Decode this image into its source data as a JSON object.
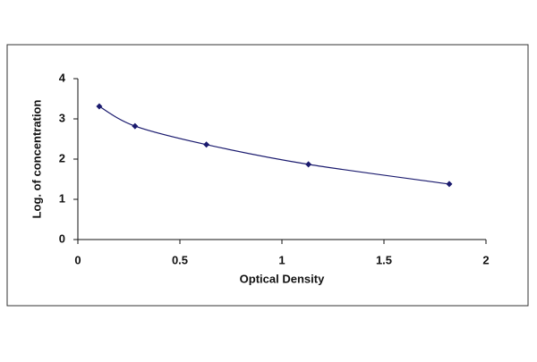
{
  "chart_data": {
    "type": "scatter",
    "xlabel": "Optical Density",
    "ylabel": "Log. of concentration",
    "x": [
      0.105,
      0.28,
      0.63,
      1.13,
      1.82
    ],
    "values": [
      3.31,
      2.82,
      2.36,
      1.87,
      1.38
    ],
    "color": "#1a1a6e",
    "fit_line": true,
    "xlim": [
      0,
      2
    ],
    "xticks": [
      0,
      0.5,
      1,
      1.5,
      2
    ],
    "ylim": [
      0,
      4
    ],
    "yticks": [
      0,
      1,
      2,
      3,
      4
    ]
  }
}
